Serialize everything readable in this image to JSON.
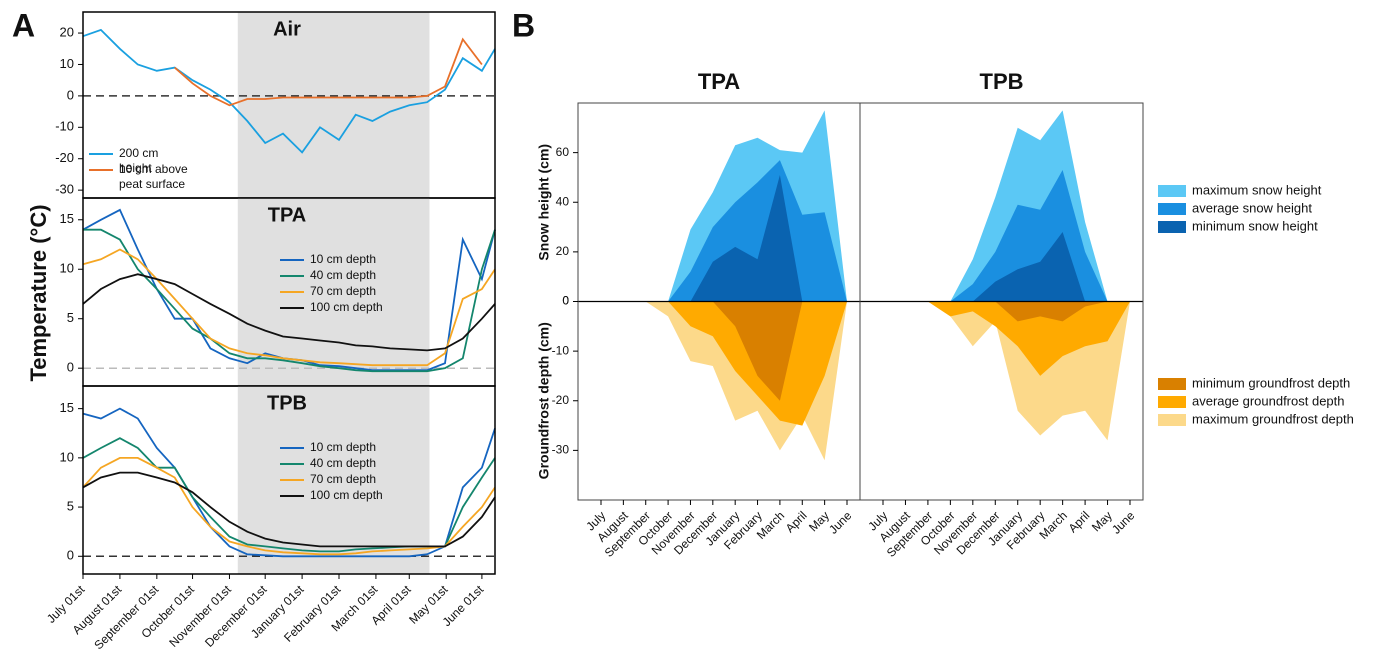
{
  "panel_labels": [
    "A",
    "B"
  ],
  "chart_data": [
    {
      "type": "line",
      "title": "Air",
      "xlim": [
        0,
        346
      ],
      "ylim": [
        -32.5,
        26.7
      ],
      "yticks": [
        -30,
        -20,
        -10,
        0,
        10,
        20
      ],
      "shade": [
        130,
        291
      ],
      "hline": 0,
      "hline_color": "#333333",
      "legend": "lower left",
      "x": [
        0,
        15,
        31,
        46,
        62,
        77,
        92,
        107,
        123,
        138,
        153,
        168,
        184,
        199,
        215,
        229,
        243,
        258,
        274,
        289,
        304,
        319,
        335,
        346
      ],
      "series": [
        {
          "name": "200 cm height",
          "color": "#1aa0e0",
          "values": [
            19,
            21,
            15,
            10,
            8,
            9,
            5,
            2,
            -2,
            -8,
            -15,
            -12,
            -18,
            -10,
            -14,
            -6,
            -8,
            -5,
            -3,
            -2,
            2,
            12,
            8,
            15
          ]
        },
        {
          "name": "10 cm above peat surface",
          "color": "#e8702a",
          "values": [
            null,
            null,
            null,
            null,
            null,
            9,
            4,
            0,
            -3,
            -1,
            -1,
            -0.5,
            -0.5,
            -0.5,
            -0.5,
            -0.5,
            -0.5,
            -0.5,
            -0.5,
            0,
            3,
            18,
            10,
            null
          ]
        }
      ]
    },
    {
      "type": "line",
      "title": "TPA",
      "ylabel": "Temperature (°C)",
      "xlim": [
        0,
        346
      ],
      "ylim": [
        -1.8,
        17.2
      ],
      "yticks": [
        0,
        5,
        10,
        15
      ],
      "shade": [
        130,
        291
      ],
      "hline": 0,
      "hline_color": "#bbbbbb",
      "legend": "center right",
      "x": [
        0,
        15,
        31,
        46,
        62,
        77,
        92,
        107,
        123,
        138,
        153,
        168,
        184,
        199,
        215,
        229,
        243,
        258,
        274,
        289,
        304,
        319,
        335,
        346
      ],
      "series": [
        {
          "name": "10 cm depth",
          "color": "#1565c0",
          "values": [
            14,
            15,
            16,
            12,
            8,
            5,
            5,
            2,
            1,
            0.5,
            1.5,
            1,
            0.8,
            0.3,
            0.2,
            0,
            -0.2,
            -0.2,
            -0.2,
            -0.2,
            0.5,
            13,
            9,
            14
          ]
        },
        {
          "name": "40 cm depth",
          "color": "#14866d",
          "values": [
            14,
            14,
            13,
            10,
            8,
            6,
            4,
            3,
            1.5,
            1,
            1,
            0.8,
            0.5,
            0.2,
            0,
            -0.2,
            -0.3,
            -0.3,
            -0.3,
            -0.3,
            0,
            1,
            10,
            14
          ]
        },
        {
          "name": "70 cm depth",
          "color": "#f5a623",
          "values": [
            10.5,
            11,
            12,
            11,
            9,
            7,
            5,
            3,
            2,
            1.5,
            1.3,
            1,
            0.8,
            0.6,
            0.5,
            0.4,
            0.3,
            0.3,
            0.3,
            0.3,
            1.5,
            7,
            8,
            10
          ]
        },
        {
          "name": "100 cm depth",
          "color": "#111111",
          "values": [
            6.5,
            8,
            9,
            9.5,
            9,
            8.5,
            7.5,
            6.5,
            5.5,
            4.5,
            3.8,
            3.2,
            3,
            2.8,
            2.6,
            2.3,
            2.2,
            2,
            1.9,
            1.8,
            2,
            3,
            5,
            6.5
          ]
        }
      ]
    },
    {
      "type": "line",
      "title": "TPB",
      "xlim": [
        0,
        346
      ],
      "ylim": [
        -1.8,
        17.3
      ],
      "yticks": [
        0,
        5,
        10,
        15
      ],
      "shade": [
        130,
        291
      ],
      "hline": 0,
      "hline_color": "#333333",
      "legend": "center right",
      "xticks": [
        {
          "value": 0,
          "label": "July 01st"
        },
        {
          "value": 31,
          "label": "August 01st"
        },
        {
          "value": 62,
          "label": "September 01st"
        },
        {
          "value": 92,
          "label": "October 01st"
        },
        {
          "value": 123,
          "label": "November 01st"
        },
        {
          "value": 153,
          "label": "December 01st"
        },
        {
          "value": 184,
          "label": "January 01st"
        },
        {
          "value": 215,
          "label": "February 01st"
        },
        {
          "value": 246,
          "label": "March 01st"
        },
        {
          "value": 274,
          "label": "April 01st"
        },
        {
          "value": 305,
          "label": "May 01st"
        },
        {
          "value": 335,
          "label": "June 01st"
        }
      ],
      "x": [
        0,
        15,
        31,
        46,
        62,
        77,
        92,
        107,
        123,
        138,
        153,
        168,
        184,
        199,
        215,
        229,
        243,
        258,
        274,
        289,
        304,
        319,
        335,
        346
      ],
      "series": [
        {
          "name": "10 cm depth",
          "color": "#1565c0",
          "values": [
            14.5,
            14,
            15,
            14,
            11,
            9,
            6,
            3,
            1,
            0.2,
            0.1,
            0,
            0,
            0,
            0,
            0,
            0,
            0,
            0,
            0.2,
            1,
            7,
            9,
            13
          ]
        },
        {
          "name": "40 cm depth",
          "color": "#14866d",
          "values": [
            10,
            11,
            12,
            11,
            9,
            9,
            6,
            4,
            2,
            1.2,
            1,
            0.8,
            0.6,
            0.5,
            0.5,
            0.7,
            0.8,
            0.9,
            1,
            1,
            1,
            5,
            8,
            10
          ]
        },
        {
          "name": "70 cm depth",
          "color": "#f5a623",
          "values": [
            7,
            9,
            10,
            10,
            9,
            8,
            5,
            3,
            1.5,
            1,
            0.6,
            0.4,
            0.3,
            0.2,
            0.2,
            0.3,
            0.5,
            0.6,
            0.7,
            0.8,
            1,
            3,
            5,
            7
          ]
        },
        {
          "name": "100 cm depth",
          "color": "#111111",
          "values": [
            7,
            8,
            8.5,
            8.5,
            8,
            7.5,
            6.5,
            5,
            3.5,
            2.5,
            1.8,
            1.4,
            1.2,
            1,
            1,
            1,
            1,
            1,
            1,
            1,
            1,
            2,
            4,
            6
          ]
        }
      ]
    },
    {
      "type": "area",
      "title": "TPA",
      "ylabel": "Snow height (cm)",
      "y2label": "Groundfrost depth (cm)",
      "legend": "outside right",
      "categories": [
        "July",
        "August",
        "September",
        "October",
        "November",
        "December",
        "January",
        "February",
        "March",
        "April",
        "May",
        "June"
      ],
      "ylim": [
        -80,
        80
      ],
      "yticks": [
        0,
        20,
        40,
        60
      ],
      "y2lim": [
        -40,
        40
      ],
      "y2ticks": [
        -30,
        -20,
        -10,
        0
      ],
      "hline": 0,
      "hline_color": "#000000",
      "series": [
        {
          "name": "maximum snow height",
          "color": "#5bc8f5",
          "axis": "y",
          "values": [
            0,
            0,
            0,
            0,
            29,
            44,
            63,
            66,
            61,
            60,
            77,
            0
          ]
        },
        {
          "name": "average snow height",
          "color": "#1a8fe0",
          "axis": "y",
          "values": [
            0,
            0,
            0,
            0,
            12,
            30,
            40,
            48,
            57,
            35,
            36,
            0
          ]
        },
        {
          "name": "minimum snow height",
          "color": "#0a63b0",
          "axis": "y",
          "values": [
            0,
            0,
            0,
            0,
            0,
            16,
            22,
            17,
            51,
            0,
            0,
            0
          ]
        },
        {
          "name": "minimum groundfrost depth",
          "color": "#d98000",
          "axis": "y2",
          "values": [
            0,
            0,
            0,
            0,
            0,
            0,
            -5,
            -15,
            -20,
            0,
            0,
            0
          ]
        },
        {
          "name": "average groundfrost depth",
          "color": "#ffaa00",
          "axis": "y2",
          "values": [
            0,
            0,
            0,
            0,
            -5,
            -7,
            -14,
            -19,
            -24,
            -25,
            -15,
            0
          ]
        },
        {
          "name": "maximum groundfrost depth",
          "color": "#fcd98a",
          "axis": "y2",
          "values": [
            0,
            0,
            0,
            -3,
            -12,
            -13,
            -24,
            -22,
            -30,
            -23,
            -32,
            0
          ]
        }
      ]
    },
    {
      "type": "area",
      "title": "TPB",
      "categories": [
        "July",
        "August",
        "September",
        "October",
        "November",
        "December",
        "January",
        "February",
        "March",
        "April",
        "May",
        "June"
      ],
      "ylim": [
        -80,
        80
      ],
      "y2lim": [
        -40,
        40
      ],
      "hline": 0,
      "hline_color": "#000000",
      "series": [
        {
          "color": "#5bc8f5",
          "axis": "y",
          "values": [
            0,
            0,
            0,
            0,
            17,
            42,
            70,
            65,
            77,
            32,
            0,
            0
          ]
        },
        {
          "color": "#1a8fe0",
          "axis": "y",
          "values": [
            0,
            0,
            0,
            0,
            7,
            20,
            39,
            37,
            53,
            20,
            0,
            0
          ]
        },
        {
          "color": "#0a63b0",
          "axis": "y",
          "values": [
            0,
            0,
            0,
            0,
            0,
            8,
            13,
            16,
            28,
            0,
            0,
            0
          ]
        },
        {
          "color": "#d98000",
          "axis": "y2",
          "values": [
            0,
            0,
            0,
            0,
            0,
            0,
            -4,
            -3,
            -4,
            -1,
            0,
            0
          ]
        },
        {
          "color": "#ffaa00",
          "axis": "y2",
          "values": [
            0,
            0,
            0,
            -3,
            -2,
            -5,
            -9,
            -15,
            -11,
            -9,
            -8,
            0
          ]
        },
        {
          "color": "#fcd98a",
          "axis": "y2",
          "values": [
            0,
            0,
            0,
            -3,
            -9,
            -4,
            -22,
            -27,
            -23,
            -22,
            -28,
            0
          ]
        }
      ]
    }
  ]
}
